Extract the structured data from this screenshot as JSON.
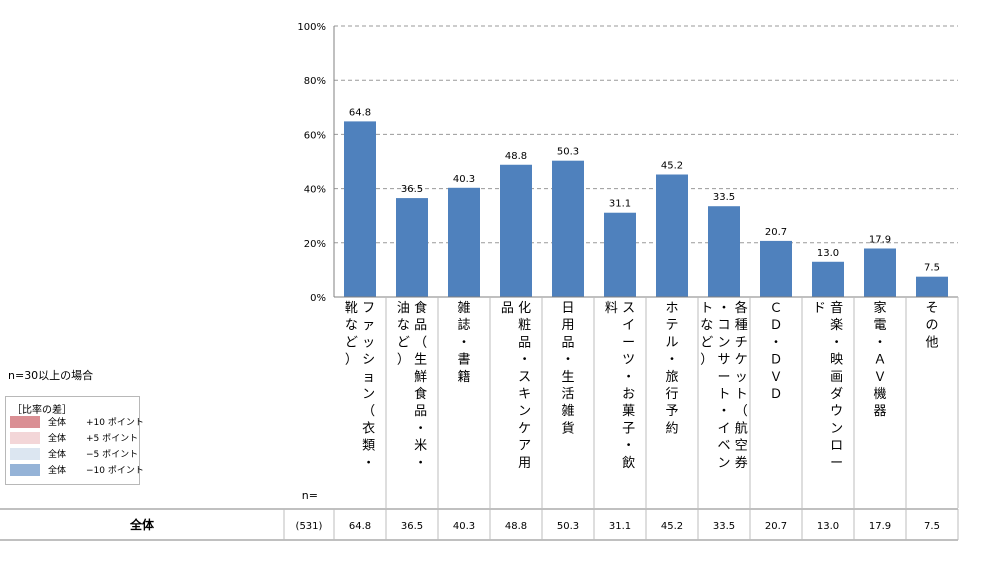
{
  "note": "n=30以上の場合",
  "legend": {
    "title": "［比率の差］",
    "items": [
      {
        "label": "全体",
        "value": "+10 ポイント",
        "color": "#da8f94"
      },
      {
        "label": "全体",
        "value": "+5 ポイント",
        "color": "#f3d6d8"
      },
      {
        "label": "全体",
        "value": "−5 ポイント",
        "color": "#dce6f1"
      },
      {
        "label": "全体",
        "value": "−10 ポイント",
        "color": "#95b3d7"
      }
    ]
  },
  "table": {
    "n_header": "n=",
    "row_label": "全体",
    "n": "(531)",
    "values": [
      "64.8",
      "36.5",
      "40.3",
      "48.8",
      "50.3",
      "31.1",
      "45.2",
      "33.5",
      "20.7",
      "13.0",
      "17.9",
      "7.5"
    ]
  },
  "chart_data": {
    "type": "bar",
    "bar_color": "#4f81bd",
    "grid": "dashed horizontal",
    "ylim": [
      0,
      100
    ],
    "yticks": [
      "0%",
      "20%",
      "40%",
      "60%",
      "80%",
      "100%"
    ],
    "categories": [
      "ファッション（衣類・靴など）",
      "食品（生鮮食品・米・油など）",
      "雑誌・書籍",
      "化粧品・スキンケア用品",
      "日用品・生活雑貨",
      "スイーツ・お菓子・飲料",
      "ホテル・旅行予約",
      "各種チケット（航空券・コンサート・イベントなど）",
      "ＣＤ・ＤＶＤ",
      "音楽・映画ダウンロード",
      "家電・ＡＶ機器",
      "その他"
    ],
    "values": [
      64.8,
      36.5,
      40.3,
      48.8,
      50.3,
      31.1,
      45.2,
      33.5,
      20.7,
      13.0,
      17.9,
      7.5
    ],
    "data_labels": [
      "64.8",
      "36.5",
      "40.3",
      "48.8",
      "50.3",
      "31.1",
      "45.2",
      "33.5",
      "20.7",
      "13.0",
      "17.9",
      "7.5"
    ]
  }
}
